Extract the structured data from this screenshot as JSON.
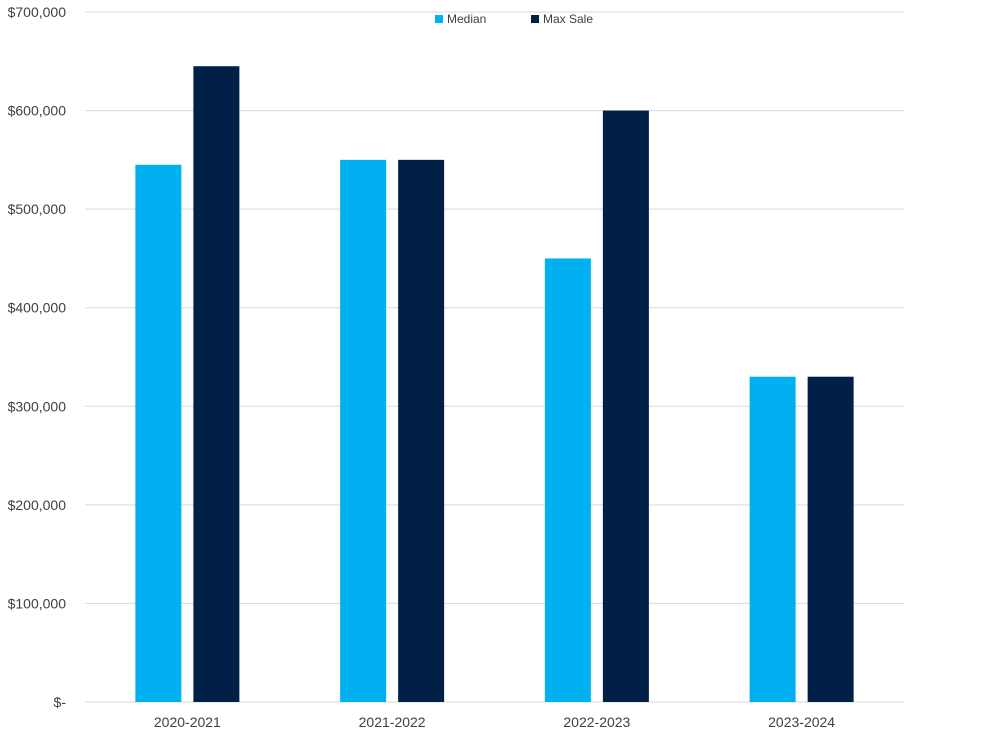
{
  "chart_data": {
    "type": "bar",
    "title": "",
    "xlabel": "",
    "ylabel": "",
    "categories": [
      "2020-2021",
      "2021-2022",
      "2022-2023",
      "2023-2024"
    ],
    "series": [
      {
        "name": "Median",
        "values": [
          545000,
          550000,
          450000,
          330000
        ],
        "color": "#00b0f0"
      },
      {
        "name": "Max Sale",
        "values": [
          645000,
          550000,
          600000,
          330000
        ],
        "color": "#002048"
      }
    ],
    "ylim": [
      0,
      700000
    ],
    "y_ticks": [
      0,
      100000,
      200000,
      300000,
      400000,
      500000,
      600000,
      700000
    ],
    "y_tick_labels": [
      "$-",
      "$100,000",
      "$200,000",
      "$300,000",
      "$400,000",
      "$500,000",
      "$600,000",
      "$700,000"
    ],
    "grid": true,
    "legend_position": "top-center"
  }
}
